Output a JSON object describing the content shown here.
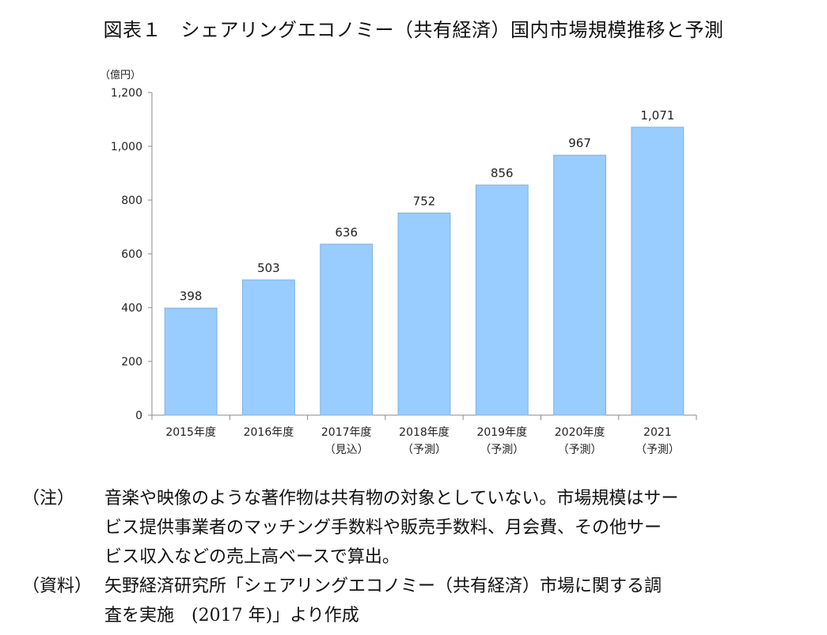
{
  "title": "図表１　シェアリングエコノミー（共有経済）国内市場規模推移と予測",
  "chart_data": {
    "type": "bar",
    "unit_label": "（億円）",
    "categories": [
      [
        "2015年度"
      ],
      [
        "2016年度"
      ],
      [
        "2017年度",
        "（見込）"
      ],
      [
        "2018年度",
        "（予測）"
      ],
      [
        "2019年度",
        "（予測）"
      ],
      [
        "2020年度",
        "（予測）"
      ],
      [
        "2021",
        "（予測）"
      ]
    ],
    "values": [
      398,
      503,
      636,
      752,
      856,
      967,
      1071
    ],
    "value_labels": [
      "398",
      "503",
      "636",
      "752",
      "856",
      "967",
      "1,071"
    ],
    "ylim": [
      0,
      1200
    ],
    "yticks": [
      0,
      200,
      400,
      600,
      800,
      1000,
      1200
    ],
    "ytick_labels": [
      "0",
      "200",
      "400",
      "600",
      "800",
      "1,000",
      "1,200"
    ],
    "grid": false,
    "bar_color": "#99ccff",
    "bar_edge_color": "#7fb2e0"
  },
  "notes": [
    {
      "tag": "（注）",
      "lines": [
        "音楽や映像のような著作物は共有物の対象としていない。市場規模はサー",
        "ビス提供事業者のマッチング手数料や販売手数料、月会費、その他サー",
        "ビス収入などの売上高ベースで算出。"
      ]
    },
    {
      "tag": "（資料）",
      "lines": [
        "矢野経済研究所「シェアリングエコノミー（共有経済）市場に関する調",
        "査を実施　(2017 年)」より作成"
      ]
    }
  ]
}
